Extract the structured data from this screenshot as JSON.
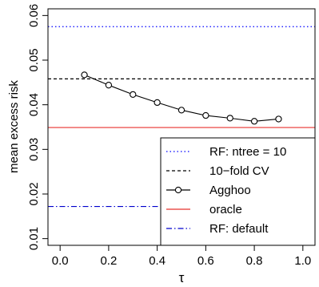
{
  "chart_data": {
    "type": "line",
    "xlabel": "τ",
    "ylabel": "mean excess risk",
    "xlim": [
      -0.05,
      1.05
    ],
    "ylim": [
      0.0085,
      0.0615
    ],
    "x_ticks": [
      0.0,
      0.2,
      0.4,
      0.6,
      0.8,
      1.0
    ],
    "x_tick_labels": [
      "0.0",
      "0.2",
      "0.4",
      "0.6",
      "0.8",
      "1.0"
    ],
    "y_ticks": [
      0.01,
      0.02,
      0.03,
      0.04,
      0.05,
      0.06
    ],
    "y_tick_labels": [
      "0.01",
      "0.02",
      "0.03",
      "0.04",
      "0.05",
      "0.06"
    ],
    "grid": false,
    "legend_position": "bottom-right",
    "series": [
      {
        "name": "RF: ntree = 10",
        "kind": "hline",
        "y": 0.0575,
        "color": "#0000ff",
        "dash": "dotted"
      },
      {
        "name": "10−fold CV",
        "kind": "hline",
        "y": 0.0458,
        "color": "#000000",
        "dash": "dashed"
      },
      {
        "name": "Agghoo",
        "kind": "line-markers",
        "color": "#000000",
        "x": [
          0.1,
          0.2,
          0.3,
          0.4,
          0.5,
          0.6,
          0.7,
          0.8,
          0.9
        ],
        "y": [
          0.0467,
          0.0444,
          0.0423,
          0.0405,
          0.0388,
          0.0376,
          0.037,
          0.0363,
          0.0368
        ]
      },
      {
        "name": "oracle",
        "kind": "hline",
        "y": 0.0349,
        "color": "#e8332f",
        "dash": "solid"
      },
      {
        "name": "RF: default",
        "kind": "hline",
        "y": 0.0172,
        "color": "#0000cd",
        "dash": "dashdot"
      }
    ]
  }
}
